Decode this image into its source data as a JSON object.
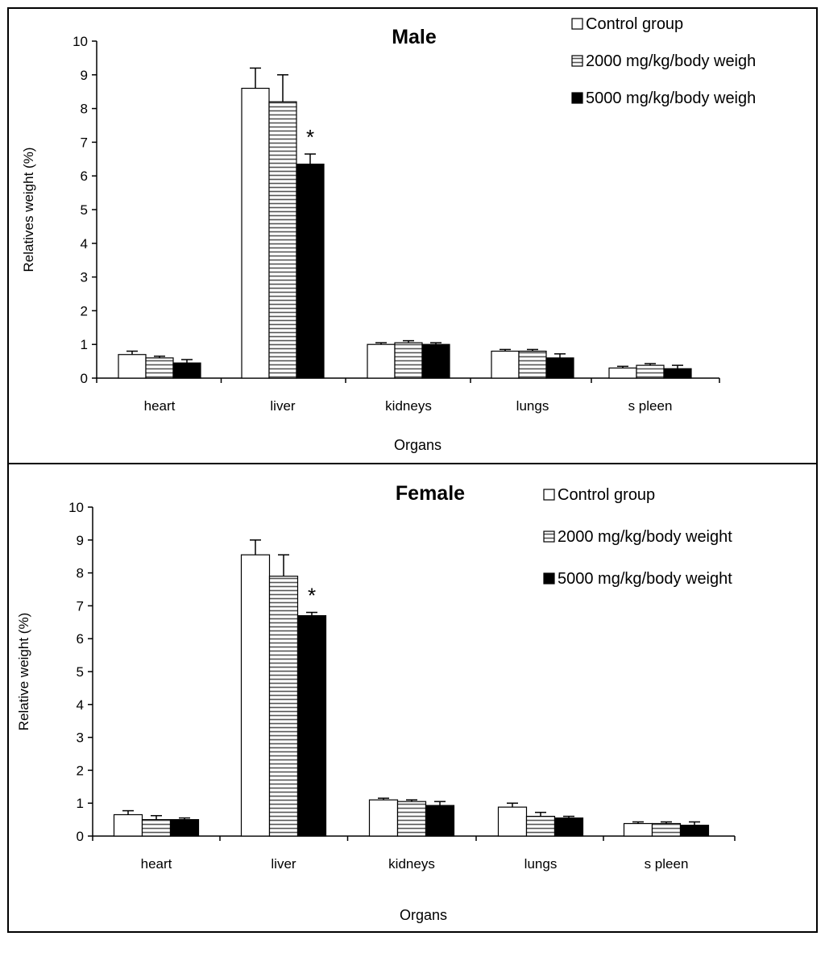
{
  "colors": {
    "background": "#ffffff",
    "frame": "#000000",
    "control_fill": "#ffffff",
    "mid_dose_fill": "#ffffff",
    "mid_dose_stripe": "#555555",
    "high_dose_fill": "#000000"
  },
  "chart_data": [
    {
      "type": "bar",
      "title": "Male",
      "xlabel": "Organs",
      "ylabel": "Relatives weight (%)",
      "ylim": [
        0,
        10
      ],
      "yticks": [
        0,
        1,
        2,
        3,
        4,
        5,
        6,
        7,
        8,
        9,
        10
      ],
      "grid": false,
      "legend_position": "top-right",
      "categories": [
        "heart",
        "liver",
        "kidneys",
        "lungs",
        "s pleen"
      ],
      "series": [
        {
          "name": "Control group",
          "pattern": "white",
          "values": [
            0.7,
            8.6,
            1.0,
            0.8,
            0.3
          ],
          "errors": [
            0.1,
            0.6,
            0.05,
            0.05,
            0.05
          ]
        },
        {
          "name": "2000 mg/kg/body weigh",
          "pattern": "striped",
          "values": [
            0.6,
            8.2,
            1.05,
            0.8,
            0.38
          ],
          "errors": [
            0.05,
            0.8,
            0.06,
            0.05,
            0.05
          ]
        },
        {
          "name": "5000 mg/kg/body weigh",
          "pattern": "black",
          "values": [
            0.45,
            6.35,
            1.0,
            0.6,
            0.28
          ],
          "errors": [
            0.1,
            0.3,
            0.05,
            0.12,
            0.1
          ]
        }
      ],
      "annotations": [
        {
          "text": "*",
          "category": "liver",
          "series": 2
        }
      ]
    },
    {
      "type": "bar",
      "title": "Female",
      "xlabel": "Organs",
      "ylabel": "Relative weight (%)",
      "ylim": [
        0,
        10
      ],
      "yticks": [
        0,
        1,
        2,
        3,
        4,
        5,
        6,
        7,
        8,
        9,
        10
      ],
      "grid": false,
      "legend_position": "top-right",
      "categories": [
        "heart",
        "liver",
        "kidneys",
        "lungs",
        "s pleen"
      ],
      "series": [
        {
          "name": "Control group",
          "pattern": "white",
          "values": [
            0.65,
            8.55,
            1.1,
            0.88,
            0.38
          ],
          "errors": [
            0.12,
            0.45,
            0.05,
            0.12,
            0.05
          ]
        },
        {
          "name": "2000 mg/kg/body weight",
          "pattern": "striped",
          "values": [
            0.5,
            7.9,
            1.05,
            0.6,
            0.38
          ],
          "errors": [
            0.12,
            0.65,
            0.05,
            0.12,
            0.05
          ]
        },
        {
          "name": "5000 mg/kg/body weight",
          "pattern": "black",
          "values": [
            0.5,
            6.7,
            0.93,
            0.55,
            0.33
          ],
          "errors": [
            0.05,
            0.1,
            0.12,
            0.05,
            0.1
          ]
        }
      ],
      "annotations": [
        {
          "text": "*",
          "category": "liver",
          "series": 2
        }
      ]
    }
  ]
}
